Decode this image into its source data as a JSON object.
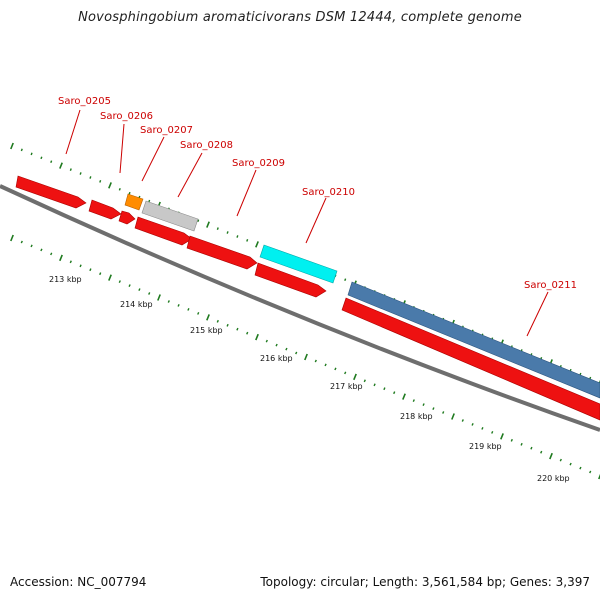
{
  "title": "Novosphingobium aromaticivorans DSM 12444, complete genome",
  "footer": {
    "accession": "Accession: NC_007794",
    "stats": "Topology: circular; Length: 3,561,584 bp; Genes: 3,397"
  },
  "colors": {
    "backbone": "#7a7a7a",
    "tick": "#1f7a1f",
    "label": "#cc0000",
    "red": "#ee1111",
    "orange": "#ff8c00",
    "gray": "#c8c8c8",
    "cyan": "#00f0f0",
    "blue": "#4a7aaa"
  },
  "kbp_labels": [
    "213 kbp",
    "214 kbp",
    "215 kbp",
    "216 kbp",
    "217 kbp",
    "218 kbp",
    "219 kbp",
    "220 kbp"
  ],
  "genes": [
    {
      "label": "Saro_0205",
      "color": "red"
    },
    {
      "label": "Saro_0206",
      "color": "red"
    },
    {
      "label": "",
      "color": "red"
    },
    {
      "label": "",
      "color": "orange"
    },
    {
      "label": "Saro_0207",
      "color": "gray"
    },
    {
      "label": "",
      "color": "red"
    },
    {
      "label": "Saro_0208",
      "color": "red"
    },
    {
      "label": "Saro_0209",
      "color": "red"
    },
    {
      "label": "Saro_0210",
      "color": "cyan"
    },
    {
      "label": "",
      "color": "blue"
    },
    {
      "label": "Saro_0211",
      "color": "red"
    }
  ]
}
